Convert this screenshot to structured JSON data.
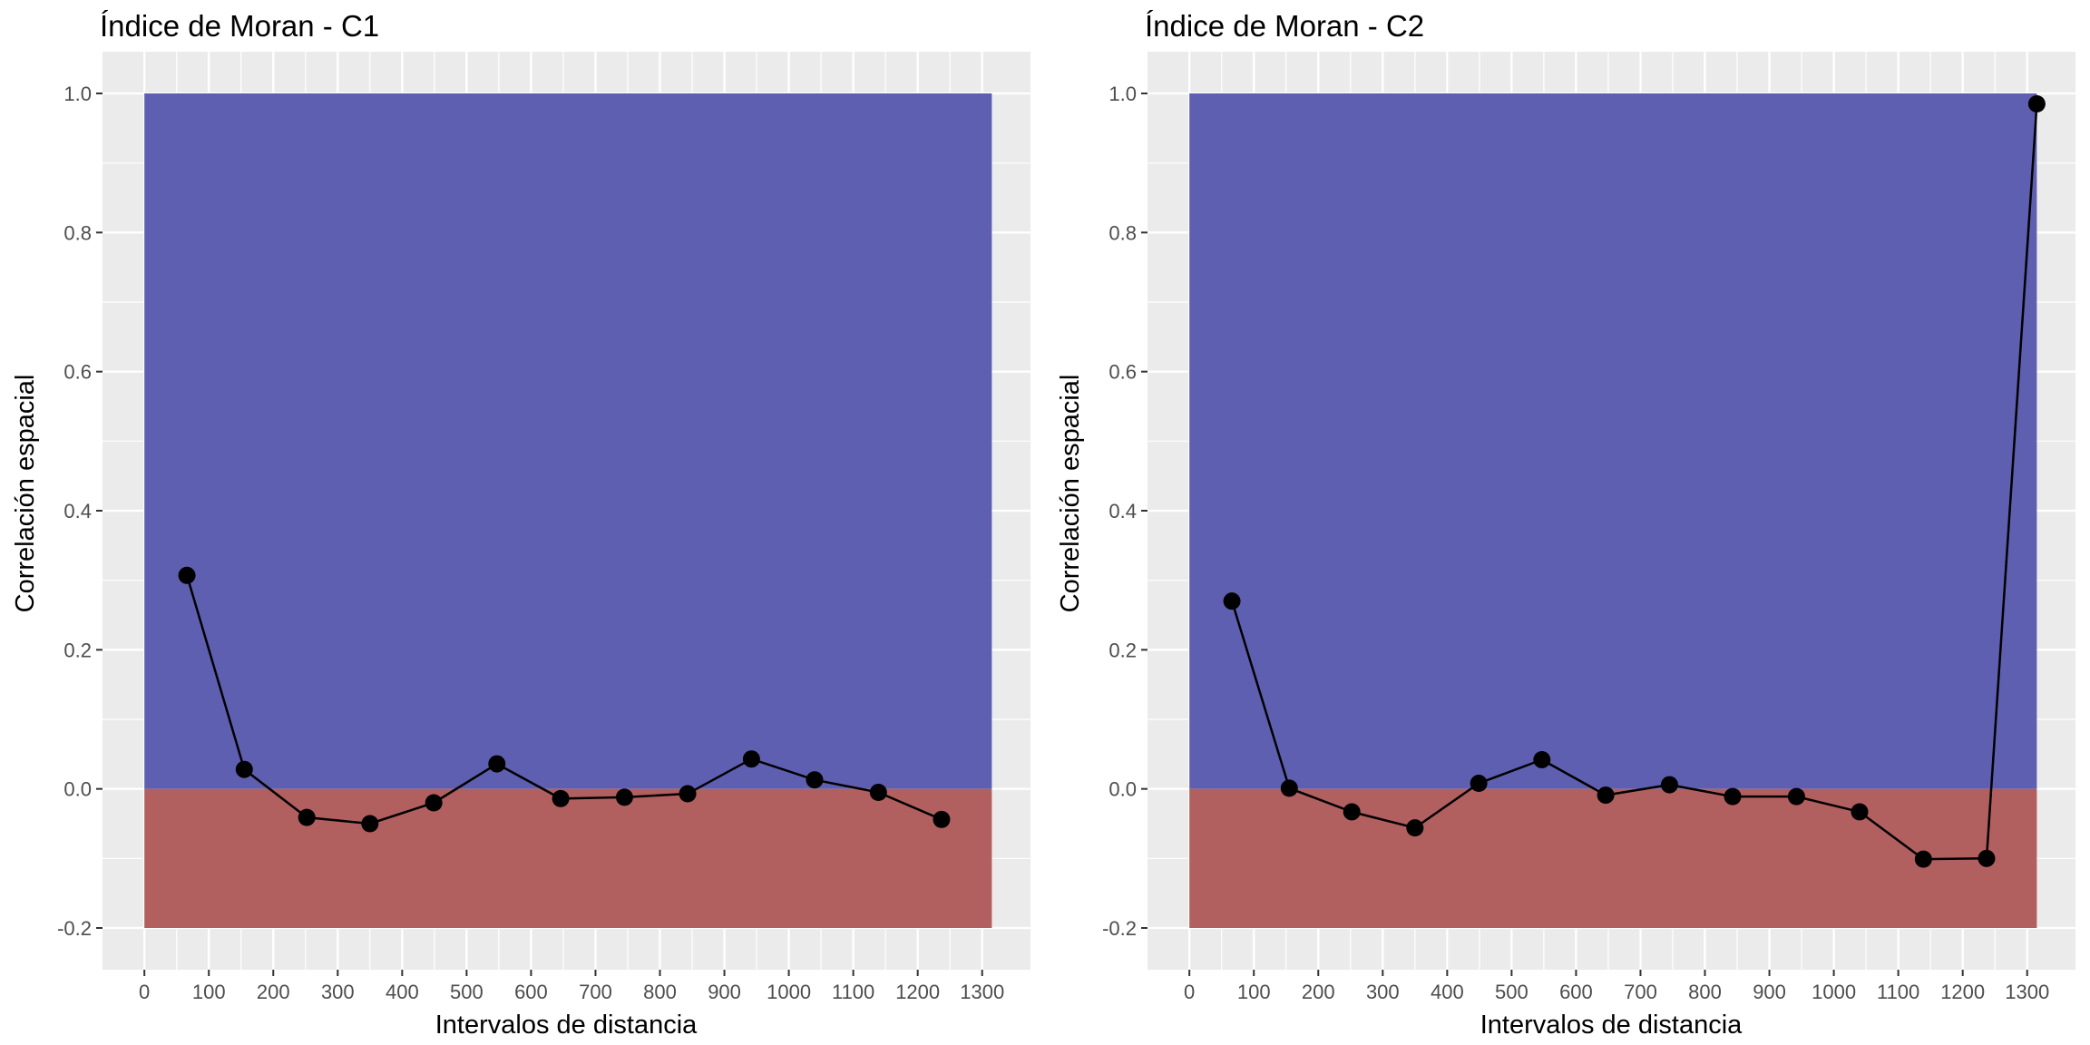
{
  "chart_data": [
    {
      "type": "line",
      "title": "Índice de Moran - C1",
      "xlabel": "Intervalos de distancia",
      "ylabel": "Correlación espacial",
      "xlim": [
        -65,
        1375
      ],
      "ylim": [
        -0.26,
        1.06
      ],
      "xticks": [
        0,
        100,
        200,
        300,
        400,
        500,
        600,
        700,
        800,
        900,
        1000,
        1100,
        1200,
        1300
      ],
      "xtick_labels": [
        "0",
        "100",
        "200",
        "300",
        "400",
        "500",
        "600",
        "700",
        "800",
        "900",
        "1000",
        "1100",
        "1200",
        "1300"
      ],
      "yticks": [
        -0.2,
        0.0,
        0.2,
        0.4,
        0.6,
        0.8,
        1.0
      ],
      "ytick_labels": [
        "-0.2",
        "0.0",
        "0.2",
        "0.4",
        "0.6",
        "0.8",
        "1.0"
      ],
      "grid": true,
      "bands": [
        {
          "x": [
            0,
            1315
          ],
          "y": [
            0.0,
            1.0
          ],
          "color": "#5a5aae"
        },
        {
          "x": [
            0,
            1315
          ],
          "y": [
            -0.2,
            0.0
          ],
          "color": "#b05a5a"
        }
      ],
      "series": [
        {
          "x": [
            66,
            155,
            252,
            350,
            449,
            547,
            646,
            745,
            843,
            942,
            1040,
            1139,
            1237
          ],
          "values": [
            0.307,
            0.028,
            -0.041,
            -0.05,
            -0.02,
            0.036,
            -0.014,
            -0.012,
            -0.007,
            0.043,
            0.013,
            -0.005,
            -0.044
          ],
          "color": "#000000"
        }
      ]
    },
    {
      "type": "line",
      "title": "Índice de Moran - C2",
      "xlabel": "Intervalos de distancia",
      "ylabel": "Correlación espacial",
      "xlim": [
        -65,
        1375
      ],
      "ylim": [
        -0.26,
        1.06
      ],
      "xticks": [
        0,
        100,
        200,
        300,
        400,
        500,
        600,
        700,
        800,
        900,
        1000,
        1100,
        1200,
        1300
      ],
      "xtick_labels": [
        "0",
        "100",
        "200",
        "300",
        "400",
        "500",
        "600",
        "700",
        "800",
        "900",
        "1000",
        "1100",
        "1200",
        "1300"
      ],
      "yticks": [
        -0.2,
        0.0,
        0.2,
        0.4,
        0.6,
        0.8,
        1.0
      ],
      "ytick_labels": [
        "-0.2",
        "0.0",
        "0.2",
        "0.4",
        "0.6",
        "0.8",
        "1.0"
      ],
      "grid": true,
      "bands": [
        {
          "x": [
            0,
            1315
          ],
          "y": [
            0.0,
            1.0
          ],
          "color": "#5a5aae"
        },
        {
          "x": [
            0,
            1315
          ],
          "y": [
            -0.2,
            0.0
          ],
          "color": "#b05a5a"
        }
      ],
      "series": [
        {
          "x": [
            66,
            155,
            252,
            350,
            449,
            547,
            646,
            745,
            843,
            942,
            1040,
            1139,
            1237,
            1315
          ],
          "values": [
            0.27,
            0.001,
            -0.033,
            -0.056,
            0.008,
            0.042,
            -0.009,
            0.006,
            -0.011,
            -0.011,
            -0.033,
            -0.101,
            -0.1,
            0.985
          ],
          "color": "#000000"
        }
      ]
    }
  ]
}
